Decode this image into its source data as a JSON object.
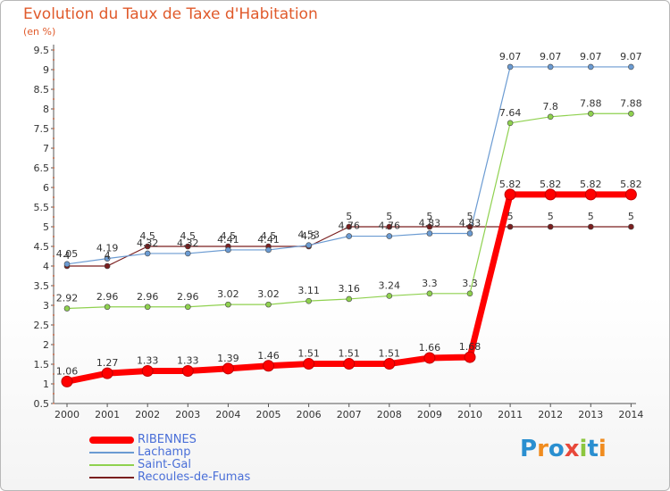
{
  "chart_data": {
    "type": "line",
    "title": "Evolution du Taux de Taxe d'Habitation",
    "subtitle": "(en %)",
    "x": [
      "2000",
      "2001",
      "2002",
      "2003",
      "2004",
      "2005",
      "2006",
      "2007",
      "2008",
      "2009",
      "2010",
      "2011",
      "2012",
      "2013",
      "2014"
    ],
    "ylim": [
      0.5,
      9.5
    ],
    "yticks": [
      "0.5",
      "1",
      "1.5",
      "2",
      "2.5",
      "3",
      "3.5",
      "4",
      "4.5",
      "5",
      "5.5",
      "6",
      "6.5",
      "7",
      "7.5",
      "8",
      "8.5",
      "9",
      "9.5"
    ],
    "grid": false,
    "legend_position": "bottom-left",
    "series": [
      {
        "name": "RIBENNES",
        "color": "#ff0000",
        "values": [
          1.06,
          1.27,
          1.33,
          1.33,
          1.39,
          1.46,
          1.51,
          1.51,
          1.51,
          1.66,
          1.68,
          5.82,
          5.82,
          5.82,
          5.82
        ],
        "labels": [
          "1.06",
          "1.27",
          "1.33",
          "1.33",
          "1.39",
          "1.46",
          "1.51",
          "1.51",
          "1.51",
          "1.66",
          "1.68",
          "5.82",
          "5.82",
          "5.82",
          "5.82"
        ]
      },
      {
        "name": "Lachamp",
        "color": "#6b9bd2",
        "values": [
          4.05,
          4.19,
          4.32,
          4.32,
          4.41,
          4.41,
          4.53,
          4.76,
          4.76,
          4.83,
          4.83,
          9.07,
          9.07,
          9.07,
          9.07
        ],
        "labels": [
          "4.05",
          "4.19",
          "4.32",
          "4.32",
          "4.41",
          "4.41",
          "4.53",
          "4.76",
          "4.76",
          "4.83",
          "4.83",
          "9.07",
          "9.07",
          "9.07",
          "9.07"
        ]
      },
      {
        "name": "Saint-Gal",
        "color": "#8fd14f",
        "values": [
          2.92,
          2.96,
          2.96,
          2.96,
          3.02,
          3.02,
          3.11,
          3.16,
          3.24,
          3.3,
          3.3,
          7.64,
          7.8,
          7.88,
          7.88
        ],
        "labels": [
          "2.92",
          "2.96",
          "2.96",
          "2.96",
          "3.02",
          "3.02",
          "3.11",
          "3.16",
          "3.24",
          "3.3",
          "3.3",
          "7.64",
          "7.8",
          "7.88",
          "7.88"
        ]
      },
      {
        "name": "Recoules-de-Fumas",
        "color": "#7a1f1f",
        "values": [
          4,
          4,
          4.5,
          4.5,
          4.5,
          4.5,
          4.5,
          5,
          5,
          5,
          5,
          5,
          5,
          5,
          5
        ],
        "labels": [
          "4",
          "4",
          "4.5",
          "4.5",
          "4.5",
          "4.5",
          "4.5",
          "5",
          "5",
          "5",
          "5",
          "5",
          "5",
          "5",
          "5"
        ]
      }
    ]
  },
  "logo": {
    "letters": [
      "P",
      "r",
      "o",
      "x",
      "i",
      "t",
      "i"
    ],
    "colors": [
      "#2a8fd0",
      "#f08c1f",
      "#2a8fd0",
      "#e8483a",
      "#8cc63f",
      "#2a8fd0",
      "#f08c1f"
    ]
  }
}
